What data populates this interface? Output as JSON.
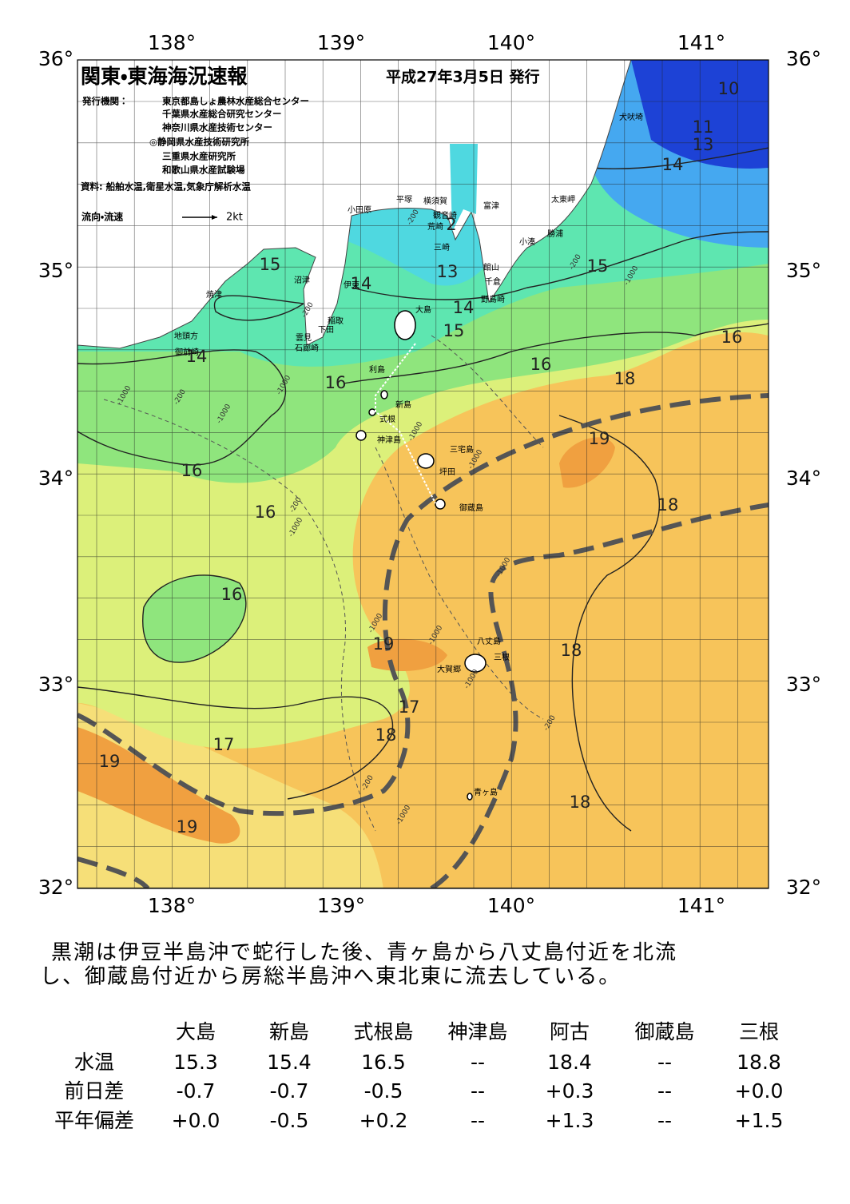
{
  "header": {
    "title": "関東・東海海況速報",
    "date": "平成27年3月5日 発行",
    "publisher_label": "発行機関：",
    "publishers": [
      "東京都島しょ農林水産総合センター",
      "千葉県水産総合研究センター",
      "神奈川県水産技術センター",
      "◎静岡県水産技術研究所",
      "三重県水産研究所",
      "和歌山県水産試験場"
    ],
    "source": "資料: 船舶水温,衛星水温,気象庁解析水温",
    "legend_label": "流向・流速",
    "legend_speed": "2kt"
  },
  "map": {
    "lon_labels": [
      "138°",
      "139°",
      "140°",
      "141°"
    ],
    "lat_labels": [
      "36°",
      "35°",
      "34°",
      "33°",
      "32°"
    ],
    "isotherm_labels": [
      10,
      11,
      13,
      14,
      15,
      15,
      14,
      13,
      14,
      15,
      16,
      14,
      16,
      18,
      16,
      19,
      16,
      18,
      16,
      16,
      19,
      18,
      17,
      18,
      17,
      19,
      18,
      19,
      2
    ],
    "places": [
      "犬吠埼",
      "小田原",
      "平塚",
      "横須賀",
      "観音崎",
      "富津",
      "太東岬",
      "荒崎",
      "勝浦",
      "小湊",
      "三崎",
      "館山",
      "沼津",
      "伊東",
      "千倉",
      "野島崎",
      "焼津",
      "大島",
      "稲取",
      "下田",
      "雲見",
      "地頭方",
      "石廊崎",
      "御前崎",
      "利島",
      "新島",
      "式根",
      "神津島",
      "三宅島",
      "坪田",
      "御蔵島",
      "八丈島",
      "三根",
      "大賀郷",
      "青ヶ島"
    ],
    "depth_labels": [
      "-1000",
      "-200",
      "-1000",
      "-1000",
      "-200",
      "-1000",
      "-200",
      "-1000",
      "-200",
      "-1000",
      "-1000",
      "-1000",
      "-200",
      "-1000",
      "-1000",
      "-1000",
      "-200",
      "-1000",
      "-200"
    ]
  },
  "description": [
    "黒潮は伊豆半島沖で蛇行した後、青ヶ島から八丈島付近を北流",
    "し、御蔵島付近から房総半島沖へ東北東に流去している。"
  ],
  "table": {
    "columns": [
      "大島",
      "新島",
      "式根島",
      "神津島",
      "阿古",
      "御蔵島",
      "三根"
    ],
    "rows": [
      {
        "label": "水温",
        "values": [
          "15.3",
          "15.4",
          "16.5",
          "--",
          "18.4",
          "--",
          "18.8"
        ]
      },
      {
        "label": "前日差",
        "values": [
          "-0.7",
          "-0.7",
          "-0.5",
          "--",
          "+0.3",
          "--",
          "+0.0"
        ]
      },
      {
        "label": "平年偏差",
        "values": [
          "+0.0",
          "-0.5",
          "+0.2",
          "--",
          "+1.3",
          "--",
          "+1.5"
        ]
      }
    ]
  }
}
